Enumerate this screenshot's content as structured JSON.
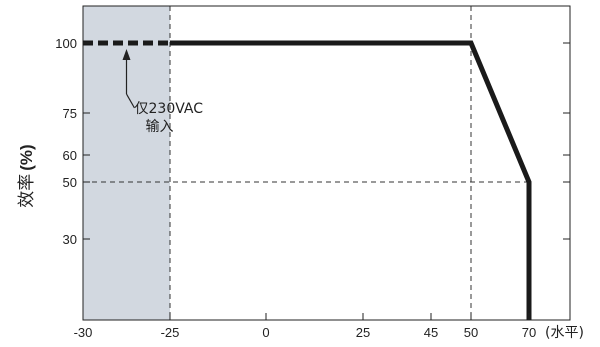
{
  "chart_data": {
    "type": "line",
    "title": "",
    "xlabel": "(水平)",
    "ylabel": "效率",
    "ylabel_unit": "(%)",
    "xlim": [
      -30,
      80
    ],
    "ylim": [
      0,
      115
    ],
    "x_ticks": [
      {
        "value": -30,
        "label": "-30"
      },
      {
        "value": -25,
        "label": "-25"
      },
      {
        "value": 0,
        "label": "0"
      },
      {
        "value": 25,
        "label": "25"
      },
      {
        "value": 45,
        "label": "45"
      },
      {
        "value": 50,
        "label": "50"
      },
      {
        "value": 70,
        "label": "70"
      }
    ],
    "y_ticks": [
      {
        "value": 100,
        "label": "100"
      },
      {
        "value": 75,
        "label": "75"
      },
      {
        "value": 60,
        "label": "60"
      },
      {
        "value": 50,
        "label": "50"
      },
      {
        "value": 30,
        "label": "30"
      }
    ],
    "series": [
      {
        "style": "solid",
        "x": [
          -25,
          50,
          70,
          70
        ],
        "y": [
          100,
          100,
          50,
          0
        ]
      },
      {
        "style": "dashed",
        "x": [
          -30,
          -25
        ],
        "y": [
          100,
          100
        ]
      }
    ],
    "shaded_region": {
      "x": [
        -30,
        -25
      ],
      "color": "#d2d8e0"
    },
    "reference_lines": [
      {
        "orientation": "vertical",
        "x": -25
      },
      {
        "orientation": "vertical",
        "x": 50
      },
      {
        "orientation": "horizontal",
        "y": 50,
        "x_range": [
          -30,
          70
        ]
      }
    ],
    "annotation": {
      "lines": [
        "仅230VAC",
        "输入"
      ],
      "arrow_target": {
        "x": -27.5,
        "y": 100
      }
    },
    "colors": {
      "line": "#1a1a1a",
      "shade": "#d2d8e0",
      "grid": "#333333"
    }
  }
}
